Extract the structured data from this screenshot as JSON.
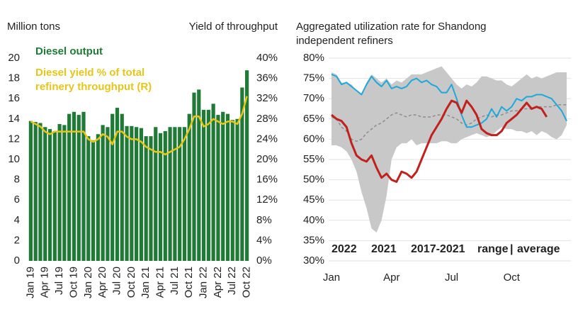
{
  "chart_data": [
    {
      "type": "bar",
      "y_label": "Million tons",
      "y2_label": "Yield of throughput",
      "categories": [
        "Jan 19",
        null,
        null,
        "Apr 19",
        null,
        null,
        "Jul 19",
        null,
        null,
        "Oct 19",
        null,
        null,
        "Jan 20",
        null,
        null,
        "Apr 20",
        null,
        null,
        "Jul 20",
        null,
        null,
        "Oct 20",
        null,
        null,
        "Jan 21",
        null,
        null,
        "Apr 21",
        null,
        null,
        "Jul 21",
        null,
        null,
        "Oct 21",
        null,
        null,
        "Jan 22",
        null,
        null,
        "Apr 22",
        null,
        null,
        "Jul 22",
        null,
        null,
        "Oct 22"
      ],
      "series": [
        {
          "name": "Diesel output",
          "type": "bar",
          "color": "#1f7a35",
          "values": [
            13.8,
            13.7,
            13.6,
            13.2,
            13.0,
            12.8,
            13.5,
            13.4,
            14.5,
            14.7,
            14.4,
            14.7,
            12.3,
            11.9,
            12.5,
            13.4,
            13.2,
            14.5,
            15.1,
            14.5,
            13.3,
            13.3,
            13.2,
            13.1,
            12.3,
            12.3,
            13.2,
            12.6,
            12.8,
            13.2,
            13.2,
            13.2,
            13.2,
            14.5,
            16.6,
            16.9,
            14.9,
            14.9,
            15.5,
            14.4,
            14.7,
            14.5,
            13.9,
            14.0,
            17.1,
            18.8
          ]
        },
        {
          "name": "Diesel yield % of total refinery throughput (R)",
          "type": "line",
          "axis": "y2",
          "color": "#e6c619",
          "values": [
            27.5,
            27,
            26.5,
            25.5,
            25,
            25.5,
            25.5,
            25.5,
            25.5,
            25.5,
            25.5,
            25.5,
            24,
            23.5,
            24,
            25,
            24.5,
            23,
            25.5,
            25.5,
            24.5,
            24,
            24,
            23.5,
            22.5,
            22,
            21.5,
            21.5,
            21,
            21.5,
            22,
            22.5,
            24,
            26,
            28.5,
            28.5,
            26.5,
            27,
            28,
            27.5,
            27,
            27.5,
            27.5,
            27,
            29,
            32.5
          ]
        }
      ],
      "ylim": [
        0,
        20
      ],
      "yticks": [
        0,
        2,
        4,
        6,
        8,
        10,
        12,
        14,
        16,
        18,
        20
      ],
      "y2lim": [
        0,
        40
      ],
      "y2ticks": [
        {
          "value": 0,
          "label": "0%"
        },
        {
          "value": 4,
          "label": "4%"
        },
        {
          "value": 8,
          "label": "8%"
        },
        {
          "value": 12,
          "label": "12%"
        },
        {
          "value": 16,
          "label": "16%"
        },
        {
          "value": 20,
          "label": "20%"
        },
        {
          "value": 24,
          "label": "24%"
        },
        {
          "value": 28,
          "label": "28%"
        },
        {
          "value": 32,
          "label": "32%"
        },
        {
          "value": 36,
          "label": "36%"
        },
        {
          "value": 40,
          "label": "40%"
        }
      ],
      "grid": false
    },
    {
      "type": "line",
      "title": "Aggregated utilization rate for Shandong independent refiners",
      "categories": [
        "Jan",
        null,
        null,
        null,
        null,
        null,
        null,
        null,
        null,
        null,
        null,
        null,
        "Apr",
        null,
        null,
        null,
        null,
        null,
        null,
        null,
        null,
        null,
        null,
        null,
        "Jul",
        null,
        null,
        null,
        null,
        null,
        null,
        null,
        null,
        null,
        null,
        null,
        "Oct",
        null,
        null,
        null,
        null,
        null,
        null,
        null,
        null,
        null,
        null,
        null
      ],
      "series": [
        {
          "name": "2022",
          "type": "line",
          "color": "#c0211c",
          "width": 3,
          "values": [
            66,
            65,
            64.5,
            63,
            59,
            56,
            55,
            54.5,
            56,
            53,
            50.5,
            51.5,
            50,
            49.5,
            52,
            51.5,
            50.5,
            52,
            55,
            58,
            61,
            63,
            65,
            67.5,
            69.5,
            69,
            66.5,
            69.5,
            68,
            66,
            62.5,
            61.5,
            61,
            61,
            62,
            64,
            65,
            66,
            67.5,
            69,
            67.5,
            68,
            67.5,
            65.5,
            null,
            null,
            null,
            null
          ]
        },
        {
          "name": "2021",
          "type": "line",
          "color": "#1fa8dc",
          "width": 2,
          "values": [
            76,
            75.5,
            73.5,
            74,
            73,
            72,
            71,
            73.5,
            75.5,
            74,
            73,
            74.5,
            72.5,
            73,
            72.5,
            73,
            74.5,
            75,
            74,
            74.5,
            73.5,
            73,
            71.5,
            71.5,
            73.5,
            70,
            66,
            63,
            63,
            63.5,
            64,
            65,
            67.5,
            65.5,
            68,
            67,
            68,
            70,
            69.5,
            70.5,
            70.5,
            71,
            71,
            70.5,
            70,
            68.5,
            67,
            64.5
          ]
        },
        {
          "name": "range",
          "type": "band",
          "color": "#c8c8c8",
          "low": [
            58.5,
            58.5,
            58,
            57,
            55,
            52,
            47,
            43,
            38,
            37,
            40,
            46,
            55,
            58,
            59,
            59,
            60,
            58.5,
            59,
            59,
            59,
            59,
            59.5,
            59.5,
            59,
            59,
            60,
            60.5,
            61,
            61.5,
            61,
            60.5,
            61,
            62,
            63,
            62.5,
            62.5,
            62,
            62,
            61.5,
            62,
            61,
            62,
            61.5,
            60.5,
            60,
            61,
            63.5
          ],
          "high": [
            76.5,
            76,
            74,
            74,
            73.5,
            72,
            71,
            74,
            76,
            75,
            74,
            75,
            73.5,
            74.5,
            74,
            75,
            76,
            76,
            76,
            76.5,
            77,
            77.5,
            78,
            76.5,
            75,
            73.5,
            72.5,
            73.5,
            73,
            74,
            75.5,
            75.5,
            75,
            74.5,
            74.5,
            73.5,
            73,
            74,
            75,
            76,
            75,
            75.5,
            75,
            75.5,
            76,
            76.5,
            76.5,
            76.5
          ]
        },
        {
          "name": "average",
          "type": "line",
          "style": "dashed",
          "color": "#8c8c8c",
          "width": 1.5,
          "values": [
            65.5,
            65,
            63,
            62,
            60,
            59.5,
            60,
            61.5,
            62.5,
            63.5,
            64,
            65,
            66,
            66.5,
            66,
            65.5,
            66,
            66,
            65.5,
            65.5,
            65.5,
            66,
            66,
            66,
            65.5,
            65,
            64,
            63.5,
            64,
            65,
            65.5,
            66,
            65.5,
            66,
            66,
            66.5,
            67,
            67,
            67.5,
            67.5,
            67.5,
            68,
            68,
            68,
            68,
            68.5,
            68.5,
            68.5
          ]
        }
      ],
      "legend_label": "2017-2021",
      "legend_separator": "|",
      "ylim": [
        30,
        80
      ],
      "yticks": [
        {
          "value": 30,
          "label": "30%"
        },
        {
          "value": 35,
          "label": "35%"
        },
        {
          "value": 40,
          "label": "40%"
        },
        {
          "value": 45,
          "label": "45%"
        },
        {
          "value": 50,
          "label": "50%"
        },
        {
          "value": 55,
          "label": "55%"
        },
        {
          "value": 60,
          "label": "60%"
        },
        {
          "value": 65,
          "label": "65%"
        },
        {
          "value": 70,
          "label": "70%"
        },
        {
          "value": 75,
          "label": "75%"
        },
        {
          "value": 80,
          "label": "80%"
        }
      ],
      "grid": true
    }
  ]
}
